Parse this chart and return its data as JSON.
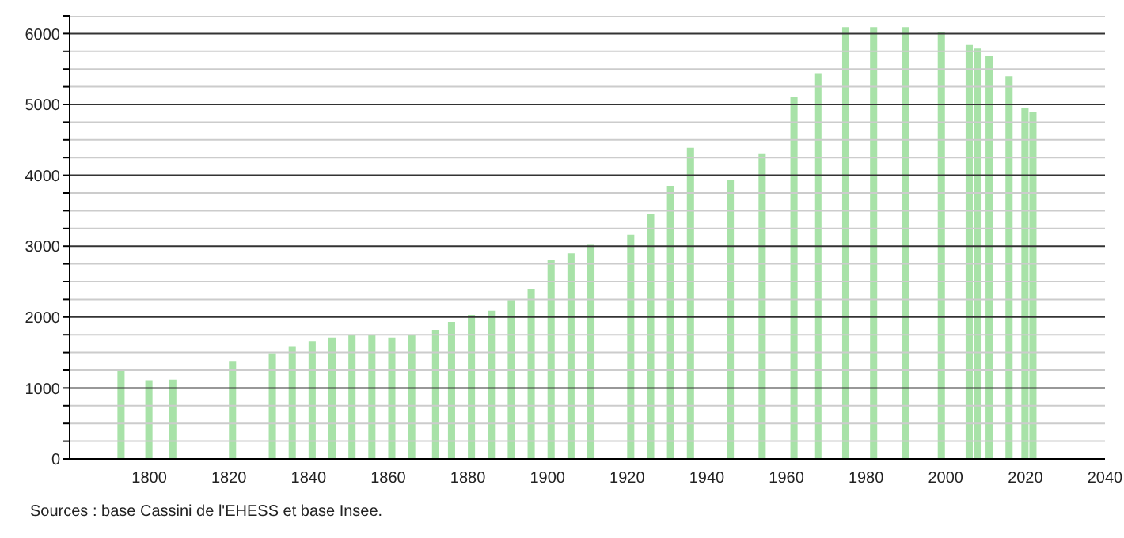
{
  "chart_data": {
    "type": "bar",
    "x": [
      1793,
      1800,
      1806,
      1821,
      1831,
      1836,
      1841,
      1846,
      1851,
      1856,
      1861,
      1866,
      1872,
      1876,
      1881,
      1886,
      1891,
      1896,
      1901,
      1906,
      1911,
      1921,
      1926,
      1931,
      1936,
      1946,
      1954,
      1962,
      1968,
      1975,
      1982,
      1990,
      1999,
      2006,
      2008,
      2011,
      2016,
      2020,
      2022
    ],
    "values": [
      1250,
      1110,
      1120,
      1380,
      1490,
      1590,
      1660,
      1710,
      1740,
      1740,
      1710,
      1740,
      1820,
      1930,
      2030,
      2090,
      2240,
      2400,
      2810,
      2900,
      3020,
      3160,
      3460,
      3850,
      4390,
      3930,
      4300,
      5100,
      5440,
      6090,
      6090,
      6090,
      6020,
      5840,
      5790,
      5680,
      5400,
      4950,
      4900
    ],
    "color": "#a8e2a8",
    "xlim": [
      1780,
      2040
    ],
    "xticks": [
      1800,
      1820,
      1840,
      1860,
      1880,
      1900,
      1920,
      1940,
      1960,
      1980,
      2000,
      2020,
      2040
    ],
    "ylim": [
      0,
      6250
    ],
    "yticks": [
      0,
      {
        "value": 250,
        "label": null
      },
      {
        "value": 500,
        "label": null
      },
      {
        "value": 750,
        "label": null
      },
      1000,
      {
        "value": 1250,
        "label": null
      },
      {
        "value": 1500,
        "label": null
      },
      {
        "value": 1750,
        "label": null
      },
      2000,
      {
        "value": 2250,
        "label": null
      },
      {
        "value": 2500,
        "label": null
      },
      {
        "value": 2750,
        "label": null
      },
      3000,
      {
        "value": 3250,
        "label": null
      },
      {
        "value": 3500,
        "label": null
      },
      {
        "value": 3750,
        "label": null
      },
      4000,
      {
        "value": 4250,
        "label": null
      },
      {
        "value": 4500,
        "label": null
      },
      {
        "value": 4750,
        "label": null
      },
      5000,
      {
        "value": 5250,
        "label": null
      },
      {
        "value": 5500,
        "label": null
      },
      {
        "value": 5750,
        "label": null
      },
      6000,
      {
        "value": 6250,
        "label": null
      }
    ],
    "grid": "y",
    "annotations": [
      "Sources : base Cassini de l'EHESS et base Insee."
    ]
  }
}
